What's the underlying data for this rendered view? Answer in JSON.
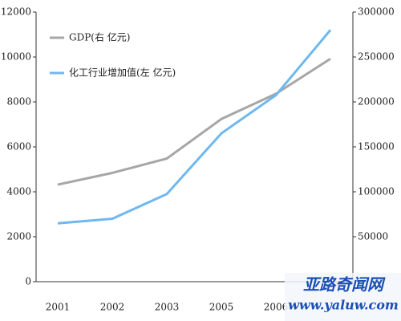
{
  "chart_data": {
    "type": "line",
    "categories": [
      "2001",
      "2002",
      "2003",
      "2005",
      "2006",
      null
    ],
    "series": [
      {
        "name": "GDP(右 亿元)",
        "color": "#a6a6a6",
        "axis": "y2",
        "values": [
          108000,
          121000,
          137000,
          181000,
          209000,
          248000
        ]
      },
      {
        "name": "化工行业增加值(左 亿元)",
        "color": "#6fb8ef",
        "values": [
          2600,
          2800,
          3900,
          6600,
          8300,
          11200
        ]
      }
    ],
    "ylim": [
      0,
      12000
    ],
    "yticks": [
      0,
      2000,
      4000,
      6000,
      8000,
      10000,
      12000
    ],
    "y2lim": [
      0,
      300000
    ],
    "y2ticks": [
      50000,
      100000,
      150000,
      200000,
      250000,
      300000
    ],
    "grid": false,
    "watermark": [
      "亚路奇闻网",
      "www.yaluw.com"
    ]
  }
}
